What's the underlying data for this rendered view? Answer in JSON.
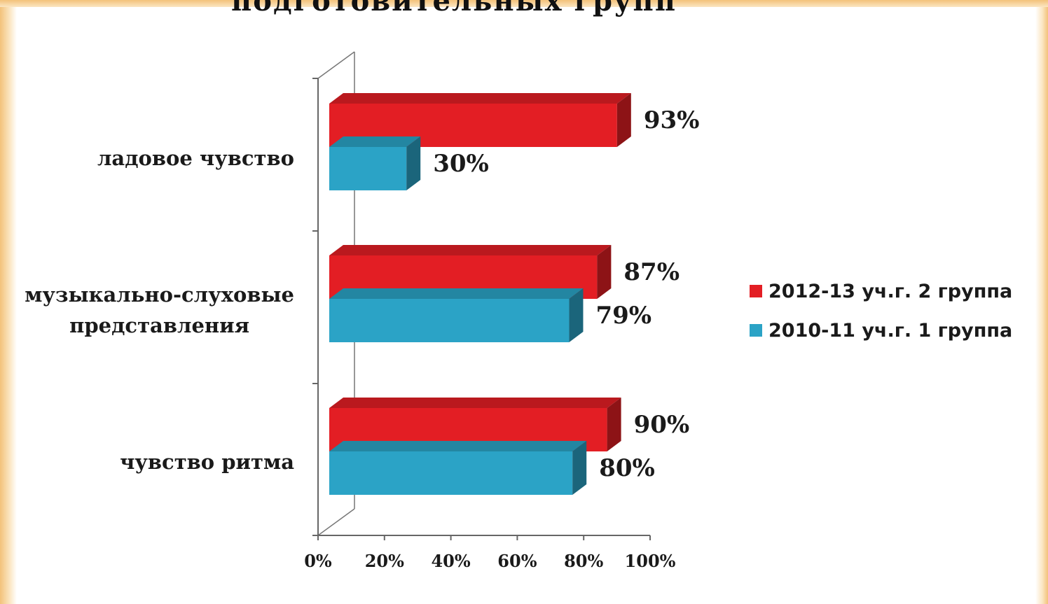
{
  "slide_title": "подготовительных групп",
  "chart_data": {
    "type": "bar",
    "orientation": "horizontal",
    "categories": [
      "ладовое чувство",
      "музыкально-слуховые представления",
      "чувство ритма"
    ],
    "category_lines": [
      [
        "ладовое чувство"
      ],
      [
        "музыкально-слуховые",
        "представления"
      ],
      [
        "чувство ритма"
      ]
    ],
    "series": [
      {
        "name": "2012-13 уч.г. 2 группа",
        "color": "#e31e24",
        "values": [
          93,
          87,
          90
        ],
        "labels": [
          "93%",
          "87%",
          "90%"
        ]
      },
      {
        "name": "2010-11 уч.г. 1 группа",
        "color": "#2ba3c6",
        "values": [
          30,
          79,
          80
        ],
        "labels": [
          "30%",
          "79%",
          "80%"
        ]
      }
    ],
    "xlim": [
      0,
      100
    ],
    "x_ticks": [
      "0%",
      "20%",
      "40%",
      "60%",
      "80%",
      "100%"
    ],
    "legend_position": "right",
    "grid": false,
    "style": "3d"
  }
}
